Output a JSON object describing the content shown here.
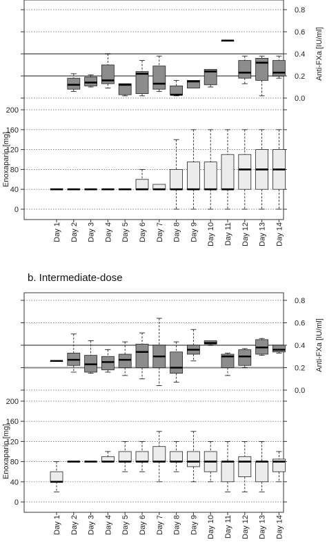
{
  "chart_data": [
    {
      "type": "boxplot",
      "panel_label": "",
      "categories": [
        "Day 1",
        "Day 2",
        "Day 3",
        "Day 4",
        "Day 5",
        "Day 6",
        "Day 7",
        "Day 8",
        "Day 9",
        "Day 10",
        "Day 11",
        "Day 12",
        "Day 13",
        "Day 14"
      ],
      "antifxa": {
        "ylabel": "Anti-FXa [IU/ml]",
        "yticks": [
          0.0,
          0.2,
          0.4,
          0.6,
          0.8
        ],
        "ylim": [
          -0.02,
          0.85
        ],
        "reference_lines": [
          0.2,
          0.4
        ],
        "boxes": [
          null,
          {
            "min": 0.06,
            "q1": 0.08,
            "median": 0.12,
            "q3": 0.18,
            "max": 0.22
          },
          {
            "min": 0.1,
            "q1": 0.11,
            "median": 0.14,
            "q3": 0.19,
            "max": 0.21
          },
          {
            "min": 0.09,
            "q1": 0.13,
            "median": 0.16,
            "q3": 0.3,
            "max": 0.4
          },
          {
            "min": 0.02,
            "q1": 0.03,
            "median": 0.12,
            "q3": 0.13,
            "max": 0.13
          },
          {
            "min": 0.02,
            "q1": 0.04,
            "median": 0.22,
            "q3": 0.24,
            "max": 0.34
          },
          {
            "min": 0.06,
            "q1": 0.08,
            "median": 0.13,
            "q3": 0.29,
            "max": 0.38
          },
          {
            "min": 0.02,
            "q1": 0.03,
            "median": 0.03,
            "q3": 0.11,
            "max": 0.16
          },
          {
            "min": 0.09,
            "q1": 0.09,
            "median": 0.15,
            "q3": 0.16,
            "max": 0.16
          },
          {
            "min": 0.1,
            "q1": 0.12,
            "median": 0.24,
            "q3": 0.26,
            "max": 0.26
          },
          {
            "min": 0.52,
            "q1": 0.52,
            "median": 0.52,
            "q3": 0.52,
            "max": 0.52
          },
          {
            "min": 0.13,
            "q1": 0.18,
            "median": 0.23,
            "q3": 0.34,
            "max": 0.38
          },
          {
            "min": 0.02,
            "q1": 0.16,
            "median": 0.32,
            "q3": 0.36,
            "max": 0.38
          },
          {
            "min": 0.18,
            "q1": 0.2,
            "median": 0.23,
            "q3": 0.34,
            "max": 0.38
          }
        ]
      },
      "dose": {
        "ylabel": "Enoxaparin [mg]",
        "yticks": [
          0,
          40,
          80,
          120,
          160,
          200
        ],
        "ylim": [
          -5,
          210
        ],
        "boxes": [
          {
            "min": 40,
            "q1": 40,
            "median": 40,
            "q3": 40,
            "max": 40
          },
          {
            "min": 40,
            "q1": 40,
            "median": 40,
            "q3": 40,
            "max": 40
          },
          {
            "min": 40,
            "q1": 40,
            "median": 40,
            "q3": 40,
            "max": 40
          },
          {
            "min": 40,
            "q1": 40,
            "median": 40,
            "q3": 40,
            "max": 40
          },
          {
            "min": 40,
            "q1": 40,
            "median": 40,
            "q3": 40,
            "max": 40
          },
          {
            "min": 40,
            "q1": 40,
            "median": 40,
            "q3": 60,
            "max": 80
          },
          {
            "min": 40,
            "q1": 40,
            "median": 40,
            "q3": 50,
            "max": 50
          },
          {
            "min": 0,
            "q1": 40,
            "median": 40,
            "q3": 80,
            "max": 140
          },
          {
            "min": 0,
            "q1": 40,
            "median": 40,
            "q3": 95,
            "max": 160
          },
          {
            "min": 0,
            "q1": 40,
            "median": 40,
            "q3": 95,
            "max": 160
          },
          {
            "min": 0,
            "q1": 40,
            "median": 40,
            "q3": 110,
            "max": 160
          },
          {
            "min": 0,
            "q1": 40,
            "median": 80,
            "q3": 110,
            "max": 160
          },
          {
            "min": 0,
            "q1": 40,
            "median": 80,
            "q3": 120,
            "max": 160
          },
          {
            "min": 0,
            "q1": 40,
            "median": 80,
            "q3": 120,
            "max": 160
          }
        ]
      }
    },
    {
      "type": "boxplot",
      "panel_label": "b. Intermediate-dose",
      "categories": [
        "Day 1",
        "Day 2",
        "Day 3",
        "Day 4",
        "Day 5",
        "Day 6",
        "Day 7",
        "Day 8",
        "Day 9",
        "Day 10",
        "Day 11",
        "Day 12",
        "Day 13",
        "Day 14"
      ],
      "antifxa": {
        "ylabel": "Anti-FXa [IU/ml]",
        "yticks": [
          0.0,
          0.2,
          0.4,
          0.6,
          0.8
        ],
        "ylim": [
          -0.02,
          0.85
        ],
        "reference_lines": [
          0.2,
          0.4
        ],
        "boxes": [
          {
            "min": 0.26,
            "q1": 0.26,
            "median": 0.26,
            "q3": 0.26,
            "max": 0.26
          },
          {
            "min": 0.16,
            "q1": 0.22,
            "median": 0.27,
            "q3": 0.33,
            "max": 0.5
          },
          {
            "min": 0.15,
            "q1": 0.16,
            "median": 0.23,
            "q3": 0.31,
            "max": 0.44
          },
          {
            "min": 0.16,
            "q1": 0.18,
            "median": 0.25,
            "q3": 0.3,
            "max": 0.36
          },
          {
            "min": 0.13,
            "q1": 0.2,
            "median": 0.27,
            "q3": 0.32,
            "max": 0.43
          },
          {
            "min": 0.1,
            "q1": 0.2,
            "median": 0.34,
            "q3": 0.41,
            "max": 0.51
          },
          {
            "min": 0.04,
            "q1": 0.2,
            "median": 0.3,
            "q3": 0.4,
            "max": 0.64
          },
          {
            "min": 0.07,
            "q1": 0.15,
            "median": 0.2,
            "q3": 0.34,
            "max": 0.43
          },
          {
            "min": 0.26,
            "q1": 0.32,
            "median": 0.36,
            "q3": 0.4,
            "max": 0.54
          },
          {
            "min": 0.4,
            "q1": 0.41,
            "median": 0.42,
            "q3": 0.44,
            "max": 0.44
          },
          {
            "min": 0.13,
            "q1": 0.2,
            "median": 0.3,
            "q3": 0.32,
            "max": 0.33
          },
          {
            "min": 0.2,
            "q1": 0.22,
            "median": 0.3,
            "q3": 0.36,
            "max": 0.37
          },
          {
            "min": 0.31,
            "q1": 0.32,
            "median": 0.38,
            "q3": 0.45,
            "max": 0.46
          },
          {
            "min": 0.33,
            "q1": 0.34,
            "median": 0.36,
            "q3": 0.4,
            "max": 0.4
          }
        ]
      },
      "dose": {
        "ylabel": "Enoxaparin [mg]",
        "yticks": [
          0,
          40,
          80,
          120,
          160,
          200
        ],
        "ylim": [
          -5,
          210
        ],
        "boxes": [
          {
            "min": 20,
            "q1": 40,
            "median": 40,
            "q3": 60,
            "max": 80
          },
          {
            "min": 80,
            "q1": 80,
            "median": 80,
            "q3": 80,
            "max": 80
          },
          {
            "min": 80,
            "q1": 80,
            "median": 80,
            "q3": 80,
            "max": 80
          },
          {
            "min": 80,
            "q1": 80,
            "median": 80,
            "q3": 90,
            "max": 100
          },
          {
            "min": 60,
            "q1": 80,
            "median": 80,
            "q3": 100,
            "max": 120
          },
          {
            "min": 60,
            "q1": 80,
            "median": 80,
            "q3": 100,
            "max": 120
          },
          {
            "min": 40,
            "q1": 80,
            "median": 80,
            "q3": 110,
            "max": 140
          },
          {
            "min": 60,
            "q1": 80,
            "median": 80,
            "q3": 100,
            "max": 120
          },
          {
            "min": 40,
            "q1": 70,
            "median": 80,
            "q3": 100,
            "max": 140
          },
          {
            "min": 40,
            "q1": 60,
            "median": 80,
            "q3": 100,
            "max": 120
          },
          {
            "min": 20,
            "q1": 40,
            "median": 80,
            "q3": 80,
            "max": 120
          },
          {
            "min": 20,
            "q1": 50,
            "median": 80,
            "q3": 90,
            "max": 120
          },
          {
            "min": 20,
            "q1": 40,
            "median": 80,
            "q3": 80,
            "max": 120
          },
          {
            "min": 40,
            "q1": 60,
            "median": 80,
            "q3": 85,
            "max": 100
          }
        ]
      }
    }
  ],
  "colors": {
    "antifxa_box": "#8c8c8c",
    "dose_box": "#ececec",
    "reference_line": "#8a8a8a",
    "grid": "#555555",
    "whisker": "#222222"
  }
}
